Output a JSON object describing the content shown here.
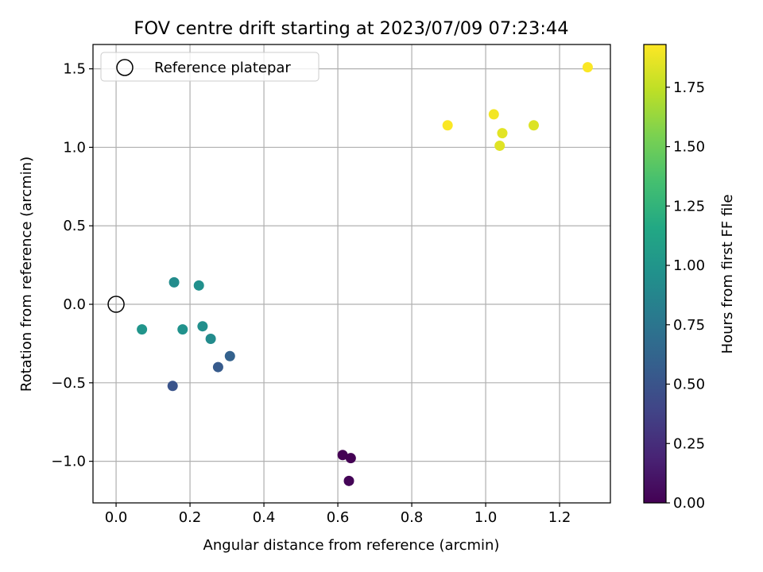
{
  "chart_data": {
    "type": "scatter",
    "title": "FOV centre drift starting at 2023/07/09 07:23:44",
    "xlabel": "Angular distance from reference (arcmin)",
    "ylabel": "Rotation from reference (arcmin)",
    "xlim": [
      -0.0625,
      1.3375
    ],
    "ylim": [
      -1.265,
      1.655
    ],
    "xticks": [
      0.0,
      0.2,
      0.4,
      0.6,
      0.8,
      1.0,
      1.2
    ],
    "xtick_labels": [
      "0.0",
      "0.2",
      "0.4",
      "0.6",
      "0.8",
      "1.0",
      "1.2"
    ],
    "yticks": [
      -1.0,
      -0.5,
      0.0,
      0.5,
      1.0,
      1.5
    ],
    "ytick_labels": [
      "−1.0",
      "−0.5",
      "0.0",
      "0.5",
      "1.0",
      "1.5"
    ],
    "grid": true,
    "legend": {
      "position": "top-left",
      "entries": [
        "Reference platepar"
      ]
    },
    "reference_point": {
      "x": 0.0,
      "y": 0.0,
      "marker": "open-circle"
    },
    "colorbar": {
      "label": "Hours from first FF file",
      "colormap": "viridis",
      "range": [
        0.0,
        1.93
      ],
      "ticks": [
        0.0,
        0.25,
        0.5,
        0.75,
        1.0,
        1.25,
        1.5,
        1.75
      ],
      "tick_labels": [
        "0.00",
        "0.25",
        "0.50",
        "0.75",
        "1.00",
        "1.25",
        "1.50",
        "1.75"
      ]
    },
    "points": [
      {
        "x": 0.613,
        "y": -0.96,
        "hours": 0.0
      },
      {
        "x": 0.635,
        "y": -0.98,
        "hours": 0.0
      },
      {
        "x": 0.63,
        "y": -1.125,
        "hours": 0.02
      },
      {
        "x": 0.153,
        "y": -0.52,
        "hours": 0.5
      },
      {
        "x": 0.276,
        "y": -0.4,
        "hours": 0.55
      },
      {
        "x": 0.308,
        "y": -0.33,
        "hours": 0.6
      },
      {
        "x": 0.256,
        "y": -0.22,
        "hours": 0.92
      },
      {
        "x": 0.234,
        "y": -0.14,
        "hours": 0.95
      },
      {
        "x": 0.18,
        "y": -0.16,
        "hours": 0.97
      },
      {
        "x": 0.07,
        "y": -0.16,
        "hours": 1.0
      },
      {
        "x": 0.157,
        "y": 0.14,
        "hours": 0.93
      },
      {
        "x": 0.224,
        "y": 0.12,
        "hours": 0.96
      },
      {
        "x": 0.897,
        "y": 1.14,
        "hours": 1.92
      },
      {
        "x": 1.022,
        "y": 1.21,
        "hours": 1.9
      },
      {
        "x": 1.045,
        "y": 1.09,
        "hours": 1.85
      },
      {
        "x": 1.038,
        "y": 1.01,
        "hours": 1.84
      },
      {
        "x": 1.13,
        "y": 1.14,
        "hours": 1.83
      },
      {
        "x": 1.276,
        "y": 1.51,
        "hours": 1.92
      }
    ]
  }
}
